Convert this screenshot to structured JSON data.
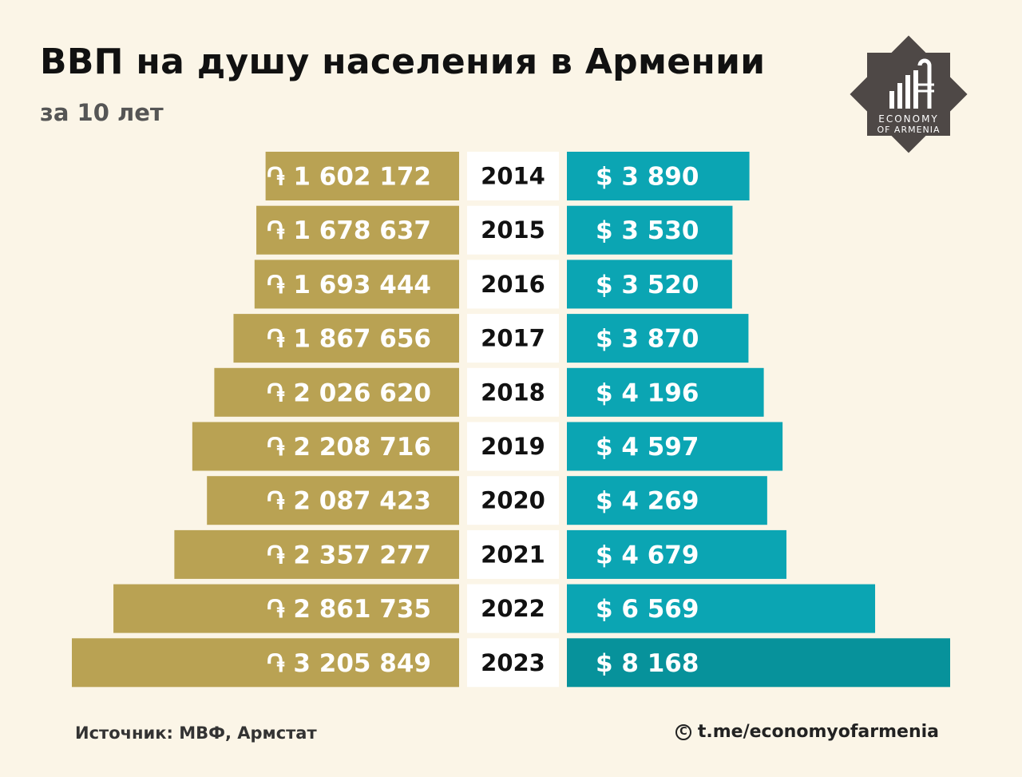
{
  "header": {
    "title": "ВВП на душу населения в Армении",
    "subtitle": "за 10 лет"
  },
  "logo": {
    "line1": "ECONOMY",
    "line2": "OF ARMENIA",
    "icon": "economy-of-armenia-logo"
  },
  "chart_data": {
    "type": "bar",
    "layout": "back-to-back horizontal bars",
    "categories": [
      "2014",
      "2015",
      "2016",
      "2017",
      "2018",
      "2019",
      "2020",
      "2021",
      "2022",
      "2023"
    ],
    "series": [
      {
        "color": "#b9a253",
        "unit": "֏",
        "values": [
          1602172,
          1678637,
          1693444,
          1867656,
          2026620,
          2208716,
          2087423,
          2357277,
          2861735,
          3205849
        ],
        "labels": [
          "֏ 1 602 172",
          "֏ 1 678 637",
          "֏ 1 693 444",
          "֏ 1 867 656",
          "֏ 2 026 620",
          "֏ 2 208 716",
          "֏ 2 087 423",
          "֏ 2 357 277",
          "֏ 2 861 735",
          "֏ 3 205 849"
        ]
      },
      {
        "color": "#0ba5b3",
        "highlight_color": "#07929b",
        "unit": "$",
        "values": [
          3890,
          3530,
          3520,
          3870,
          4196,
          4597,
          4269,
          4679,
          6569,
          8168
        ],
        "labels": [
          "$ 3 890",
          "$ 3 530",
          "$ 3 520",
          "$ 3 870",
          "$ 4 196",
          "$ 4 597",
          "$ 4 269",
          "$ 4 679",
          "$ 6 569",
          "$ 8 168"
        ]
      }
    ]
  },
  "footer": {
    "source": "Источник: МВФ, Армстат",
    "credit": "t.me/economyofarmenia",
    "credit_icon": "copyright-icon"
  }
}
